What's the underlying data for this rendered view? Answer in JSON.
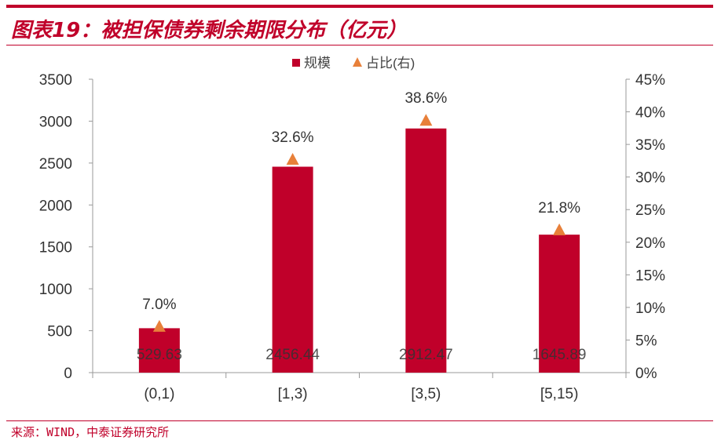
{
  "title": "图表19：被担保债券剩余期限分布（亿元）",
  "source": "来源：WIND，中泰证券研究所",
  "chart_data": {
    "type": "bar",
    "categories": [
      "(0,1)",
      "[1,3)",
      "[3,5)",
      "[5,15)"
    ],
    "series": [
      {
        "name": "规模",
        "type": "bar",
        "axis": "left",
        "values": [
          529.63,
          2456.44,
          2912.47,
          1645.89
        ],
        "labels": [
          "529.63",
          "2456.44",
          "2912.47",
          "1645.89"
        ],
        "color": "#c0002a"
      },
      {
        "name": "占比(右)",
        "type": "scatter",
        "marker": "triangle",
        "axis": "right",
        "values": [
          7.0,
          32.6,
          38.6,
          21.8
        ],
        "labels": [
          "7.0%",
          "32.6%",
          "38.6%",
          "21.8%"
        ],
        "color": "#e8803a"
      }
    ],
    "ylim": [
      0,
      3500
    ],
    "yticks": [
      "0",
      "500",
      "1000",
      "1500",
      "2000",
      "2500",
      "3000",
      "3500"
    ],
    "y2lim": [
      0,
      45
    ],
    "y2ticks": [
      "0%",
      "5%",
      "10%",
      "15%",
      "20%",
      "25%",
      "30%",
      "35%",
      "40%",
      "45%"
    ],
    "legend": "top-center",
    "grid": false
  }
}
